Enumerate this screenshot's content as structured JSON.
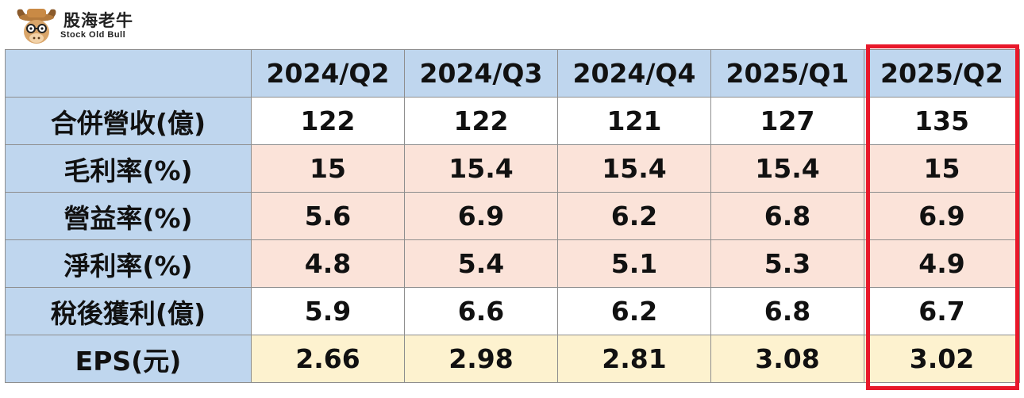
{
  "logo": {
    "name_cn": "股海老牛",
    "name_en": "Stock Old Bull",
    "icon": "bull-icon"
  },
  "chart_data": {
    "type": "table",
    "title": "",
    "columns": [
      "2024/Q2",
      "2024/Q3",
      "2024/Q4",
      "2025/Q1",
      "2025/Q2"
    ],
    "rows": [
      {
        "label": "合併營收(億)",
        "values": [
          "122",
          "122",
          "121",
          "127",
          "135"
        ]
      },
      {
        "label": "毛利率(%)",
        "values": [
          "15",
          "15.4",
          "15.4",
          "15.4",
          "15"
        ]
      },
      {
        "label": "營益率(%)",
        "values": [
          "5.6",
          "6.9",
          "6.2",
          "6.8",
          "6.9"
        ]
      },
      {
        "label": "淨利率(%)",
        "values": [
          "4.8",
          "5.4",
          "5.1",
          "5.3",
          "4.9"
        ]
      },
      {
        "label": "稅後獲利(億)",
        "values": [
          "5.9",
          "6.6",
          "6.2",
          "6.8",
          "6.7"
        ]
      },
      {
        "label": "EPS(元)",
        "values": [
          "2.66",
          "2.98",
          "2.81",
          "3.08",
          "3.02"
        ]
      }
    ],
    "highlighted_column": "2025/Q2"
  },
  "colors": {
    "header_bg": "#bfd6ee",
    "peach_bg": "#fbe3d9",
    "cream_bg": "#fdf2cf",
    "highlight_border": "#e8182a"
  }
}
